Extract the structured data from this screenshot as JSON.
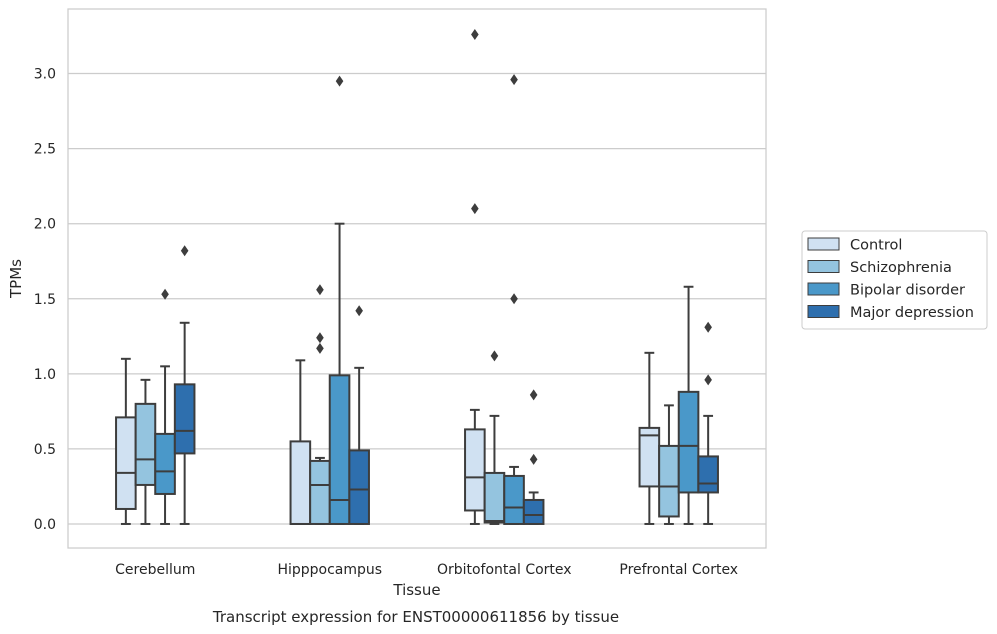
{
  "chart_data": {
    "type": "box",
    "caption": "Transcript expression for ENST00000611856 by tissue",
    "xlabel": "Tissue",
    "ylabel": "TPMs",
    "ylim": [
      -0.16,
      3.43
    ],
    "yticks": [
      "0.0",
      "0.5",
      "1.0",
      "1.5",
      "2.0",
      "2.5",
      "3.0"
    ],
    "grid": true,
    "legend_position": "right",
    "categories": [
      "Cerebellum",
      "Hipppocampus",
      "Orbitofontal Cortex",
      "Prefrontal Cortex"
    ],
    "series": [
      {
        "name": "Control",
        "color": "#d0e1f2",
        "boxes": [
          {
            "whislo": 0.0,
            "q1": 0.1,
            "med": 0.34,
            "q3": 0.71,
            "whishi": 1.1,
            "fliers": []
          },
          {
            "whislo": 0.0,
            "q1": 0.0,
            "med": 0.0,
            "q3": 0.55,
            "whishi": 1.09,
            "fliers": []
          },
          {
            "whislo": 0.0,
            "q1": 0.09,
            "med": 0.31,
            "q3": 0.63,
            "whishi": 0.76,
            "fliers": [
              2.1,
              3.26
            ]
          },
          {
            "whislo": 0.0,
            "q1": 0.25,
            "med": 0.59,
            "q3": 0.64,
            "whishi": 1.14,
            "fliers": []
          }
        ]
      },
      {
        "name": "Schizophrenia",
        "color": "#94c4df",
        "boxes": [
          {
            "whislo": 0.0,
            "q1": 0.26,
            "med": 0.43,
            "q3": 0.8,
            "whishi": 0.96,
            "fliers": []
          },
          {
            "whislo": 0.0,
            "q1": 0.0,
            "med": 0.26,
            "q3": 0.42,
            "whishi": 0.44,
            "fliers": [
              1.17,
              1.24,
              1.56
            ]
          },
          {
            "whislo": 0.0,
            "q1": 0.01,
            "med": 0.02,
            "q3": 0.34,
            "whishi": 0.72,
            "fliers": [
              1.12
            ]
          },
          {
            "whislo": 0.0,
            "q1": 0.05,
            "med": 0.25,
            "q3": 0.52,
            "whishi": 0.79,
            "fliers": []
          }
        ]
      },
      {
        "name": "Bipolar disorder",
        "color": "#4a98c9",
        "boxes": [
          {
            "whislo": 0.0,
            "q1": 0.2,
            "med": 0.35,
            "q3": 0.6,
            "whishi": 1.05,
            "fliers": [
              1.53
            ]
          },
          {
            "whislo": 0.0,
            "q1": 0.0,
            "med": 0.16,
            "q3": 0.99,
            "whishi": 2.0,
            "fliers": [
              2.95
            ]
          },
          {
            "whislo": 0.0,
            "q1": 0.0,
            "med": 0.11,
            "q3": 0.32,
            "whishi": 0.38,
            "fliers": [
              1.5,
              2.96
            ]
          },
          {
            "whislo": 0.0,
            "q1": 0.21,
            "med": 0.52,
            "q3": 0.88,
            "whishi": 1.58,
            "fliers": []
          }
        ]
      },
      {
        "name": "Major depression",
        "color": "#2e6fae",
        "boxes": [
          {
            "whislo": 0.0,
            "q1": 0.47,
            "med": 0.62,
            "q3": 0.93,
            "whishi": 1.34,
            "fliers": [
              1.82
            ]
          },
          {
            "whislo": 0.0,
            "q1": 0.0,
            "med": 0.23,
            "q3": 0.49,
            "whishi": 1.04,
            "fliers": [
              1.42
            ]
          },
          {
            "whislo": 0.0,
            "q1": 0.0,
            "med": 0.06,
            "q3": 0.16,
            "whishi": 0.21,
            "fliers": [
              0.43,
              0.86
            ]
          },
          {
            "whislo": 0.0,
            "q1": 0.21,
            "med": 0.27,
            "q3": 0.45,
            "whishi": 0.72,
            "fliers": [
              0.96,
              1.31
            ]
          }
        ]
      }
    ]
  }
}
